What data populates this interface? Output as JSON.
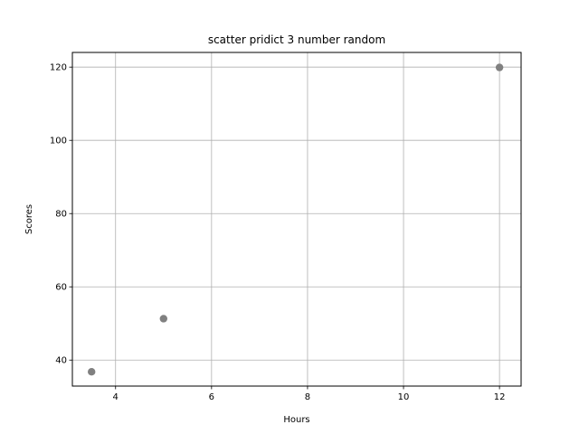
{
  "chart_data": {
    "type": "scatter",
    "title": "scatter pridict 3 number random",
    "xlabel": "Hours",
    "ylabel": "Scores",
    "xlim": [
      3.1,
      12.45
    ],
    "ylim": [
      32.9,
      124
    ],
    "xticks": [
      4,
      6,
      8,
      10,
      12
    ],
    "yticks": [
      40,
      60,
      80,
      100,
      120
    ],
    "grid": true,
    "series": [
      {
        "color": "#808080",
        "points": [
          {
            "x": 3.5,
            "y": 36.8
          },
          {
            "x": 5.0,
            "y": 51.3
          },
          {
            "x": 12.0,
            "y": 119.9
          }
        ]
      }
    ]
  }
}
